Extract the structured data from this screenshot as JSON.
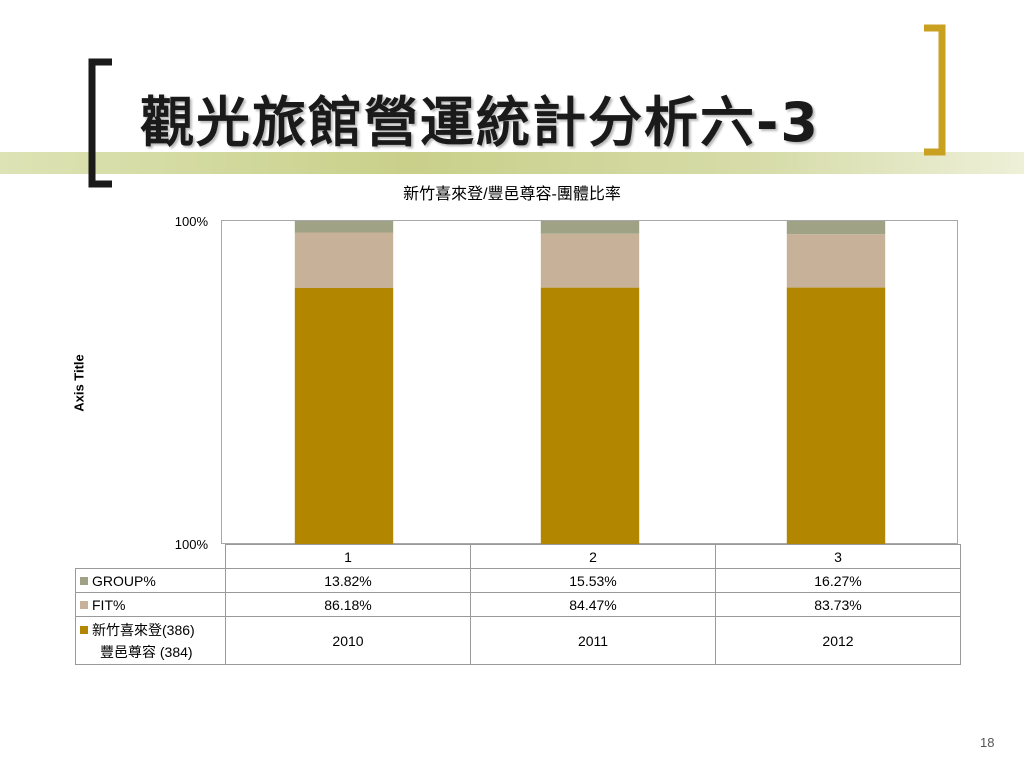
{
  "slide": {
    "title": "觀光旅館營運統計分析六-3",
    "page_number": "18"
  },
  "colors": {
    "band": "#c9d08a",
    "bracket_left": "#1a1a1a",
    "bracket_right": "#c9a020",
    "group": "#a0a286",
    "fit": "#c7b299",
    "hotel": "#b38600"
  },
  "chart_data": {
    "type": "bar",
    "stacked": true,
    "title": "新竹喜來登/豐邑尊容-團體比率",
    "ylabel": "Axis Title",
    "y_tick_labels": [
      "100%",
      "100%"
    ],
    "categories": [
      "1",
      "2",
      "3"
    ],
    "series": [
      {
        "name": "GROUP%",
        "values": [
          "13.82%",
          "15.53%",
          "16.27%"
        ]
      },
      {
        "name": "FIT%",
        "values": [
          "86.18%",
          "84.47%",
          "83.73%"
        ]
      },
      {
        "name": "新竹喜來登(386)\n豐邑尊容 (384)",
        "values": [
          "2010",
          "2011",
          "2012"
        ]
      }
    ],
    "grid": false,
    "legend": "data-table"
  }
}
